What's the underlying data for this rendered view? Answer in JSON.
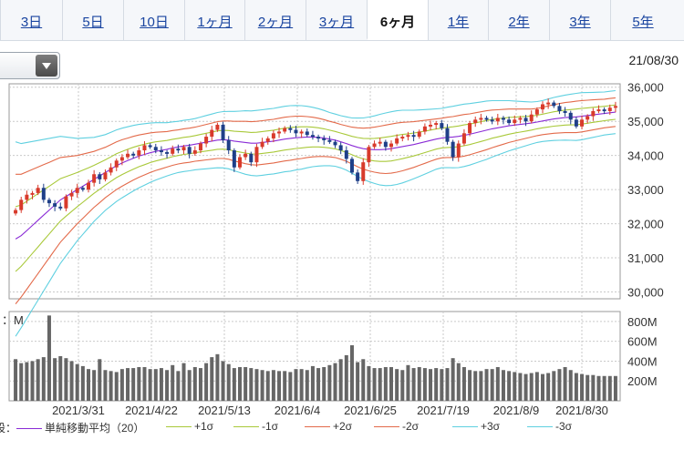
{
  "tabs": [
    {
      "label": "3日"
    },
    {
      "label": "5日"
    },
    {
      "label": "10日"
    },
    {
      "label": "1ヶ月"
    },
    {
      "label": "2ヶ月"
    },
    {
      "label": "3ヶ月"
    },
    {
      "label": "6ヶ月",
      "active": true
    },
    {
      "label": "1年"
    },
    {
      "label": "2年"
    },
    {
      "label": "3年"
    },
    {
      "label": "5年"
    }
  ],
  "date_label": "21/08/30",
  "colors": {
    "up": "#d83a2b",
    "down": "#1f3f88",
    "sma": "#8a2bd6",
    "s1": "#a9c93a",
    "s2": "#e36a4a",
    "s3": "#5fd0e0",
    "grid": "#c9c9c9",
    "volume": "#666666"
  },
  "chart_data": [
    {
      "type": "candlestick",
      "title": "",
      "x_ticks": [
        "2021/3/31",
        "2021/4/22",
        "2021/5/13",
        "2021/6/4",
        "2021/6/25",
        "2021/7/19",
        "2021/8/9",
        "2021/8/30"
      ],
      "y_ticks": [
        "36,000",
        "35,000",
        "34,000",
        "33,000",
        "32,000",
        "31,000",
        "30,000"
      ],
      "ylim": [
        29800,
        36100
      ],
      "grid": true,
      "closes": [
        32400,
        32700,
        32850,
        32900,
        33050,
        32700,
        32600,
        32500,
        32450,
        32800,
        32900,
        33050,
        33000,
        33200,
        33450,
        33300,
        33500,
        33650,
        33850,
        33950,
        34050,
        34000,
        34150,
        34300,
        34250,
        34150,
        34100,
        34050,
        34200,
        34150,
        34250,
        34050,
        34150,
        34350,
        34550,
        34750,
        34900,
        34450,
        34150,
        33650,
        33950,
        34050,
        33800,
        34250,
        34400,
        34500,
        34650,
        34700,
        34800,
        34750,
        34650,
        34700,
        34600,
        34550,
        34500,
        34450,
        34400,
        34300,
        34150,
        33900,
        33500,
        33250,
        33800,
        34250,
        34350,
        34400,
        34250,
        34350,
        34500,
        34550,
        34600,
        34550,
        34700,
        34850,
        34900,
        34950,
        34800,
        34400,
        33950,
        34350,
        34650,
        34950,
        35050,
        35100,
        35050,
        35000,
        35100,
        35050,
        34950,
        35050,
        35100,
        35000,
        35200,
        35350,
        35500,
        35550,
        35450,
        35300,
        35250,
        35050,
        34850,
        35050,
        35150,
        35300,
        35350,
        35300,
        35400,
        35450
      ],
      "sma": [
        31550,
        31650,
        31800,
        31950,
        32100,
        32250,
        32400,
        32550,
        32700,
        32800,
        32900,
        33000,
        33100,
        33200,
        33300,
        33400,
        33500,
        33600,
        33700,
        33780,
        33850,
        33920,
        33980,
        34030,
        34080,
        34120,
        34150,
        34180,
        34220,
        34250,
        34280,
        34300,
        34330,
        34360,
        34390,
        34420,
        34450,
        34460,
        34450,
        34420,
        34400,
        34380,
        34360,
        34360,
        34380,
        34400,
        34420,
        34450,
        34480,
        34500,
        34520,
        34530,
        34540,
        34540,
        34530,
        34510,
        34480,
        34450,
        34400,
        34350,
        34290,
        34240,
        34200,
        34180,
        34170,
        34170,
        34180,
        34200,
        34230,
        34260,
        34290,
        34320,
        34360,
        34400,
        34440,
        34480,
        34510,
        34530,
        34540,
        34560,
        34590,
        34620,
        34660,
        34700,
        34740,
        34780,
        34810,
        34840,
        34870,
        34890,
        34910,
        34930,
        34950,
        34980,
        35010,
        35040,
        35070,
        35090,
        35110,
        35120,
        35130,
        35150,
        35170,
        35190,
        35210,
        35230,
        35250,
        35270
      ],
      "sigma": [
        950,
        900,
        860,
        820,
        780,
        740,
        700,
        660,
        620,
        580,
        540,
        500,
        470,
        440,
        410,
        390,
        370,
        360,
        350,
        340,
        330,
        320,
        310,
        300,
        290,
        280,
        270,
        260,
        255,
        250,
        250,
        250,
        250,
        255,
        260,
        265,
        270,
        275,
        280,
        290,
        300,
        310,
        315,
        320,
        320,
        320,
        320,
        320,
        320,
        320,
        315,
        310,
        300,
        290,
        280,
        270,
        260,
        255,
        255,
        260,
        270,
        285,
        300,
        315,
        330,
        345,
        355,
        360,
        360,
        355,
        345,
        335,
        325,
        315,
        305,
        295,
        290,
        295,
        300,
        305,
        305,
        300,
        295,
        290,
        285,
        275,
        265,
        255,
        245,
        235,
        225,
        215,
        205,
        200,
        200,
        205,
        210,
        215,
        220,
        225,
        230,
        230,
        225,
        220,
        215,
        210,
        210,
        210
      ]
    },
    {
      "type": "bar",
      "title": "",
      "unit_label": "M",
      "y_ticks": [
        "800M",
        "600M",
        "400M",
        "200M"
      ],
      "ylim": [
        0,
        900
      ],
      "volumes": [
        420,
        380,
        390,
        400,
        420,
        440,
        860,
        430,
        450,
        430,
        400,
        370,
        350,
        320,
        310,
        420,
        310,
        300,
        290,
        320,
        330,
        330,
        340,
        340,
        320,
        320,
        330,
        310,
        360,
        300,
        380,
        310,
        340,
        330,
        380,
        440,
        470,
        400,
        370,
        330,
        340,
        340,
        330,
        320,
        310,
        300,
        310,
        300,
        300,
        290,
        320,
        320,
        310,
        350,
        330,
        340,
        360,
        380,
        420,
        460,
        560,
        390,
        420,
        350,
        330,
        330,
        340,
        340,
        320,
        310,
        360,
        330,
        340,
        330,
        320,
        330,
        320,
        330,
        430,
        380,
        340,
        310,
        300,
        300,
        320,
        320,
        340,
        310,
        300,
        290,
        280,
        270,
        280,
        290,
        270,
        280,
        300,
        320,
        340,
        310,
        280,
        270,
        260,
        260,
        250,
        250,
        250,
        250
      ]
    }
  ],
  "legend": [
    {
      "label": "単純移動平均（20）",
      "key": "sma"
    },
    {
      "label": "+1σ",
      "key": "s1"
    },
    {
      "label": "-1σ",
      "key": "s1"
    },
    {
      "label": "+2σ",
      "key": "s2"
    },
    {
      "label": "-2σ",
      "key": "s2"
    },
    {
      "label": "+3σ",
      "key": "s3"
    },
    {
      "label": "-3σ",
      "key": "s3"
    }
  ],
  "legend_prefix": "設：",
  "volume_header_prefix": "："
}
